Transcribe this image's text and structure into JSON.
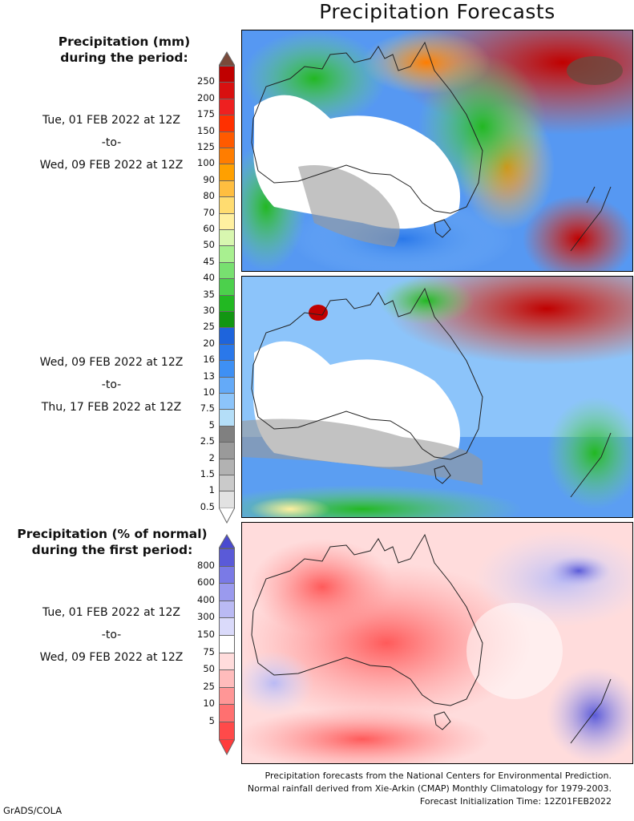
{
  "title": "Precipitation Forecasts",
  "precip_legend": {
    "title_line1": "Precipitation (mm)",
    "title_line2": "during the period:",
    "levels": [
      "250",
      "200",
      "175",
      "150",
      "125",
      "100",
      "90",
      "80",
      "70",
      "60",
      "50",
      "45",
      "40",
      "35",
      "30",
      "25",
      "20",
      "16",
      "13",
      "10",
      "7.5",
      "5",
      "2.5",
      "2",
      "1.5",
      "1",
      "0.5"
    ],
    "colors": [
      "#c00000",
      "#d81010",
      "#ee2020",
      "#ff3000",
      "#ff5a00",
      "#ff7d00",
      "#ffa000",
      "#ffbe40",
      "#ffdc70",
      "#fff0a0",
      "#d8f7b0",
      "#a8f090",
      "#78e070",
      "#4cd04c",
      "#22b822",
      "#129612",
      "#1e64dc",
      "#2a78ea",
      "#3e90f4",
      "#64aaf8",
      "#8cc4fa",
      "#b4def8",
      "#808080",
      "#9a9a9a",
      "#b2b2b2",
      "#cacaca",
      "#e2e2e2"
    ],
    "top_arrow_color": "#7a4a3a"
  },
  "period1": {
    "start": "Tue, 01 FEB 2022 at 12Z",
    "to": "-to-",
    "end": "Wed, 09 FEB 2022 at 12Z"
  },
  "period2": {
    "start": "Wed, 09 FEB 2022 at 12Z",
    "to": "-to-",
    "end": "Thu, 17 FEB 2022 at 12Z"
  },
  "pct_legend": {
    "title_line1": "Precipitation (% of normal)",
    "title_line2": "during the first period:",
    "levels": [
      "800",
      "600",
      "400",
      "300",
      "150",
      "75",
      "50",
      "25",
      "10",
      "5"
    ],
    "colors": [
      "#5a5ad8",
      "#7a7ae6",
      "#9a9aee",
      "#babaf4",
      "#dadafa",
      "#ffffff",
      "#ffdcdc",
      "#ffbcbc",
      "#ff9696",
      "#ff7070",
      "#ff4a4a"
    ],
    "top_arrow_color": "#4a4ad0",
    "bottom_arrow_color": "#ff3c3c"
  },
  "period3": {
    "start": "Tue, 01 FEB 2022 at 12Z",
    "to": "-to-",
    "end": "Wed, 09 FEB 2022 at 12Z"
  },
  "footer": {
    "line1": "Precipitation forecasts from the National Centers for Environmental Prediction.",
    "line2": "Normal rainfall derived from Xie-Arkin (CMAP) Monthly Climatology for 1979-2003.",
    "line3": "Forecast Initialization Time: 12Z01FEB2022"
  },
  "credit": "GrADS/COLA"
}
